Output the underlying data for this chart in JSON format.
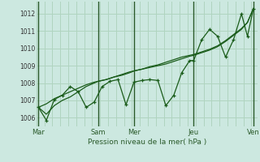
{
  "background_color": "#cce8e0",
  "grid_color": "#b0d4c0",
  "line_color": "#1a5c1a",
  "xlabel": "Pression niveau de la mer( hPa )",
  "ylim": [
    1005.5,
    1012.7
  ],
  "yticks": [
    1006,
    1007,
    1008,
    1009,
    1010,
    1011,
    1012
  ],
  "day_labels": [
    "Mar",
    "Sam",
    "Mer",
    "Jeu",
    "Ven"
  ],
  "day_positions": [
    0,
    60,
    96,
    156,
    216
  ],
  "xlim": [
    -2,
    220
  ],
  "smooth_x": [
    0,
    8,
    16,
    24,
    32,
    40,
    48,
    56,
    60,
    68,
    76,
    84,
    92,
    96,
    104,
    112,
    120,
    128,
    136,
    144,
    152,
    156,
    164,
    172,
    180,
    188,
    196,
    204,
    210,
    216
  ],
  "smooth_y": [
    1006.6,
    1006.8,
    1007.1,
    1007.3,
    1007.5,
    1007.7,
    1007.9,
    1008.05,
    1008.1,
    1008.2,
    1008.35,
    1008.5,
    1008.65,
    1008.7,
    1008.8,
    1008.9,
    1009.0,
    1009.1,
    1009.25,
    1009.4,
    1009.55,
    1009.6,
    1009.75,
    1009.9,
    1010.1,
    1010.4,
    1010.75,
    1011.1,
    1011.5,
    1012.3
  ],
  "jagged_x": [
    0,
    8,
    16,
    24,
    32,
    40,
    48,
    56,
    64,
    72,
    80,
    88,
    96,
    104,
    112,
    120,
    128,
    136,
    144,
    152,
    156,
    164,
    172,
    180,
    188,
    196,
    204,
    210,
    216
  ],
  "jagged_y": [
    1006.6,
    1005.85,
    1007.05,
    1007.3,
    1007.8,
    1007.5,
    1006.6,
    1006.9,
    1007.8,
    1008.1,
    1008.2,
    1006.75,
    1008.05,
    1008.15,
    1008.2,
    1008.15,
    1006.7,
    1007.3,
    1008.6,
    1009.3,
    1009.3,
    1010.5,
    1011.1,
    1010.7,
    1009.5,
    1010.5,
    1012.0,
    1010.7,
    1012.3
  ],
  "third_x": [
    0,
    8,
    16,
    24,
    32,
    40,
    48,
    56,
    60,
    68,
    76,
    84,
    92,
    96,
    104,
    112,
    120,
    128,
    136,
    144,
    152,
    156,
    164,
    172,
    180,
    188,
    196,
    204,
    210,
    216
  ],
  "third_y": [
    1006.6,
    1006.2,
    1006.7,
    1007.0,
    1007.2,
    1007.5,
    1007.8,
    1008.0,
    1008.1,
    1008.2,
    1008.35,
    1008.45,
    1008.6,
    1008.7,
    1008.8,
    1008.95,
    1009.05,
    1009.2,
    1009.35,
    1009.5,
    1009.6,
    1009.65,
    1009.8,
    1009.95,
    1010.15,
    1010.45,
    1010.8,
    1011.15,
    1011.5,
    1012.3
  ]
}
